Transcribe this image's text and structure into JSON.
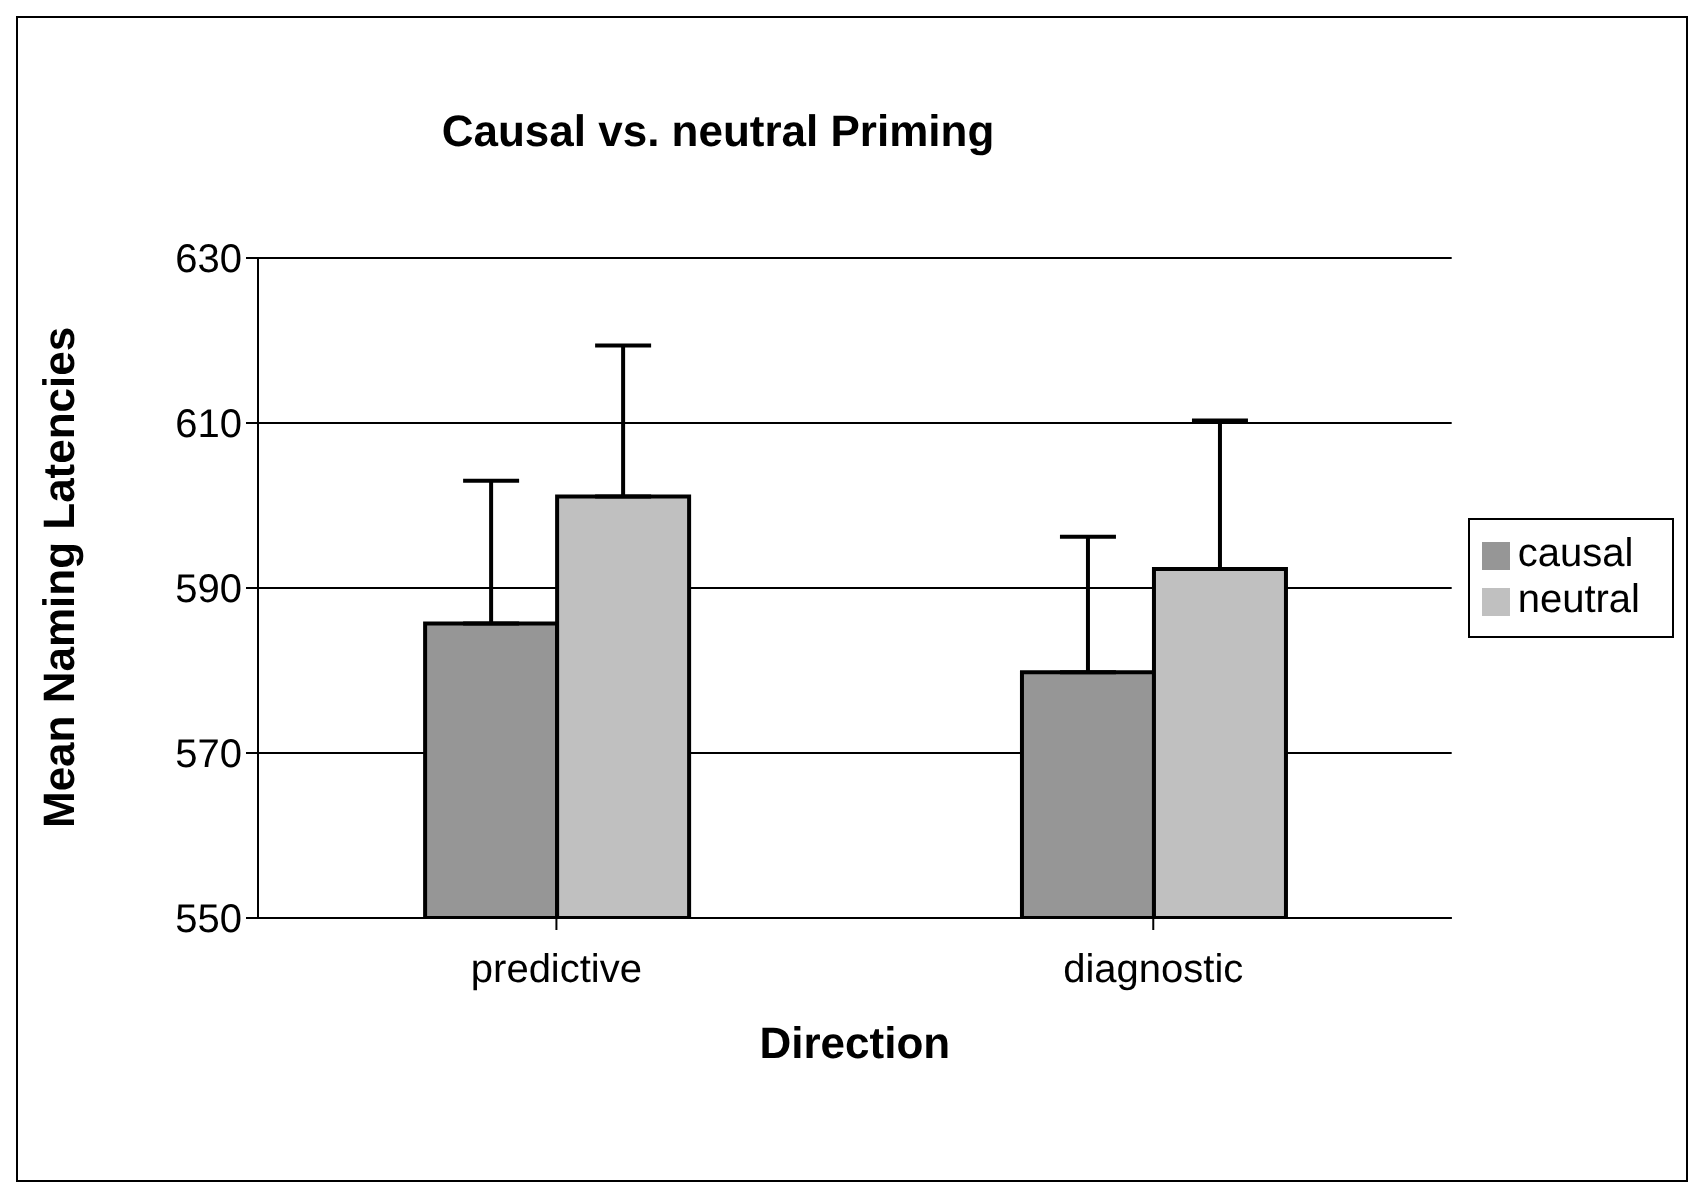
{
  "chart_data": {
    "type": "bar",
    "title": "Causal vs. neutral Priming",
    "xlabel": "Direction",
    "ylabel": "Mean Naming Latencies",
    "categories": [
      "predictive",
      "diagnostic"
    ],
    "series": [
      {
        "name": "causal",
        "color": "#969696",
        "values": [
          585.7,
          579.8
        ],
        "errors": [
          [
            585.7,
            603
          ],
          [
            579.8,
            596.2
          ]
        ]
      },
      {
        "name": "neutral",
        "color": "#c0c0c0",
        "values": [
          601.1,
          592.3
        ],
        "errors": [
          [
            601.1,
            619.4
          ],
          [
            592.3,
            610.3
          ]
        ]
      }
    ],
    "ylim": [
      550,
      630
    ],
    "yticks": [
      550,
      570,
      590,
      610,
      630
    ],
    "grid": "y",
    "legend": "right"
  }
}
